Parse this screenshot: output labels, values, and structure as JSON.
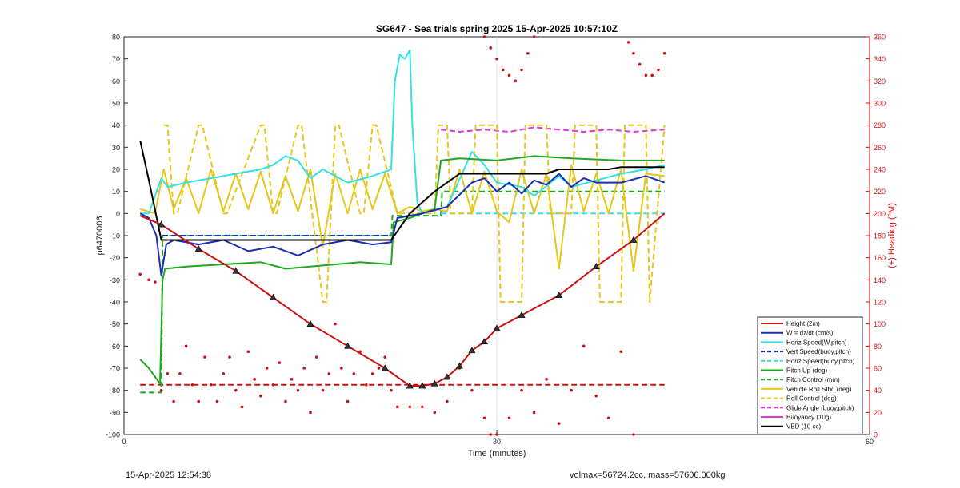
{
  "chart_data": {
    "type": "line",
    "title": "SG647 - Sea trials spring 2025 15-Apr-2025 10:57:10Z",
    "xlabel": "Time (minutes)",
    "ylabel_left": "p6470006",
    "ylabel_right": "(+) Heading (°M)",
    "xlim": [
      0,
      60
    ],
    "ylim_left": [
      -100,
      80
    ],
    "ylim_right": [
      0,
      360
    ],
    "xticks": [
      0,
      30,
      60
    ],
    "yticks_left": [
      -100,
      -90,
      -80,
      -70,
      -60,
      -50,
      -40,
      -30,
      -20,
      -10,
      0,
      10,
      20,
      30,
      40,
      50,
      60,
      70,
      80
    ],
    "yticks_right": [
      0,
      20,
      40,
      60,
      80,
      100,
      120,
      140,
      160,
      180,
      200,
      220,
      240,
      260,
      280,
      300,
      320,
      340,
      360
    ],
    "grid": "sparse-vertical",
    "legend_position": "bottom-right",
    "colors": {
      "height": "#cc1111",
      "w": "#1a2fb5",
      "horiz_speed": "#33e0e8",
      "vert_speed_buoy": "#1a2fb5",
      "horiz_speed_buoy": "#33e0e8",
      "pitch_up": "#1fa81f",
      "pitch_control": "#1fa81f",
      "roll": "#e6c619",
      "roll_control": "#e6c619",
      "glide_angle": "#e333e3",
      "buoyancy": "#e333e3",
      "vbd": "#000000",
      "heading": "#cc1111",
      "axis_right": "#cc1111"
    },
    "legend": [
      {
        "label": "Height (2m)",
        "color": "#cc1111",
        "style": "solid"
      },
      {
        "label": "W = dz/dt (cm/s)",
        "color": "#1a2fb5",
        "style": "solid"
      },
      {
        "label": "Horiz Speed(W,pitch)",
        "color": "#33e0e8",
        "style": "solid"
      },
      {
        "label": "Vert Speed(buoy,pitch)",
        "color": "#1a2fb5",
        "style": "dashed"
      },
      {
        "label": "Horiz Speed(buoy,pitch)",
        "color": "#33e0e8",
        "style": "dashed"
      },
      {
        "label": "Pitch Up (deg)",
        "color": "#1fa81f",
        "style": "solid"
      },
      {
        "label": "Pitch Control (mm)",
        "color": "#1fa81f",
        "style": "dashed"
      },
      {
        "label": "Vehicle Roll Stbd (deg)",
        "color": "#e6c619",
        "style": "solid"
      },
      {
        "label": "Roll Control (deg)",
        "color": "#e6c619",
        "style": "dashed"
      },
      {
        "label": "Glide Angle (buoy,pitch)",
        "color": "#e333e3",
        "style": "dashed"
      },
      {
        "label": "Buoyancy (10g)",
        "color": "#e333e3",
        "style": "solid"
      },
      {
        "label": "VBD (10 cc)",
        "color": "#000000",
        "style": "solid"
      }
    ],
    "series": [
      {
        "name": "Height (2m)",
        "key": "height",
        "style": "solid",
        "x": [
          1.3,
          3,
          6,
          9,
          12,
          15,
          18,
          21,
          23,
          24,
          25,
          26,
          27,
          28,
          29,
          30,
          32,
          35,
          38,
          41,
          43.5
        ],
        "y": [
          -1,
          -5,
          -16,
          -26,
          -38,
          -50,
          -60,
          -70,
          -78,
          -78,
          -77,
          -74,
          -69,
          -62,
          -58,
          -52,
          -46,
          -37,
          -24,
          -12,
          0
        ]
      },
      {
        "name": "W = dz/dt (cm/s)",
        "key": "w",
        "style": "solid",
        "x": [
          1.3,
          2,
          2.6,
          3,
          3.4,
          4,
          6,
          8,
          10,
          12,
          14,
          16,
          18,
          20,
          21.5,
          22,
          24,
          26,
          28,
          29,
          30,
          31,
          32,
          33,
          34,
          35,
          36,
          37,
          38,
          40,
          42,
          43.5
        ],
        "y": [
          0,
          -2,
          -10,
          -28,
          -14,
          -12,
          -14,
          -12,
          -17,
          -15,
          -19,
          -14,
          -12,
          -14,
          -13,
          -2,
          0,
          3,
          14,
          16,
          10,
          14,
          9,
          15,
          13,
          18,
          12,
          16,
          14,
          14,
          17,
          14
        ]
      },
      {
        "name": "Horiz Speed(W,pitch)",
        "key": "horiz_speed",
        "style": "solid",
        "x": [
          1.3,
          2,
          3,
          3.5,
          5,
          7,
          9,
          11,
          12,
          13,
          14,
          15,
          16,
          18,
          20,
          21.5,
          21.8,
          22.2,
          22.6,
          23,
          23.2,
          23.6,
          24,
          26,
          28,
          29,
          30,
          32,
          33,
          35,
          36,
          38,
          40,
          42,
          43.5
        ],
        "y": [
          0,
          0,
          16,
          12,
          14,
          16,
          18,
          20,
          22,
          26,
          24,
          16,
          20,
          14,
          17,
          20,
          60,
          72,
          70,
          74,
          40,
          5,
          0,
          3,
          28,
          22,
          14,
          12,
          8,
          17,
          12,
          15,
          18,
          20,
          22
        ]
      },
      {
        "name": "Vert Speed(buoy,pitch)",
        "key": "vert_speed_buoy",
        "style": "dashed",
        "x": [
          3.1,
          21.5
        ],
        "y": [
          -10,
          -10
        ]
      },
      {
        "name": "Horiz Speed(buoy,pitch)",
        "key": "horiz_speed_buoy",
        "style": "dashed",
        "x": [
          25.5,
          43.5
        ],
        "y": [
          0,
          0
        ]
      },
      {
        "name": "Pitch Up (deg)",
        "key": "pitch_up",
        "style": "solid",
        "x": [
          1.3,
          2,
          2.9,
          3.1,
          3.3,
          5,
          8,
          11,
          13,
          15,
          17,
          19,
          21.5,
          21.7,
          23,
          25,
          25.5,
          27,
          30,
          33,
          36,
          40,
          43.5
        ],
        "y": [
          -66,
          -70,
          -77,
          -30,
          -25,
          -24,
          -23,
          -22,
          -25,
          -24,
          -23,
          -22,
          -23,
          -4,
          -2,
          2,
          24,
          25,
          24,
          26,
          25,
          24,
          24
        ]
      },
      {
        "name": "Pitch Control (mm)",
        "key": "pitch_control",
        "style": "dashed",
        "x": [
          1.3,
          3,
          3.1,
          21.5,
          21.6,
          25.5,
          25.6,
          43.5
        ],
        "y": [
          -81,
          -81,
          -10,
          -10,
          -1,
          -1,
          10,
          10
        ]
      },
      {
        "name": "Vehicle Roll Stbd (deg)",
        "key": "roll",
        "style": "solid",
        "x": [
          1.3,
          2.5,
          3.2,
          4,
          5,
          6,
          7,
          8,
          9,
          10,
          11,
          12,
          13,
          14,
          15,
          16,
          17,
          18,
          19,
          20,
          21,
          22,
          23,
          24,
          25,
          26,
          27,
          28,
          29,
          30,
          31,
          32,
          33,
          34,
          35,
          36,
          37,
          38,
          39,
          40,
          41,
          42,
          43.5
        ],
        "y": [
          2,
          0,
          20,
          2,
          16,
          0,
          20,
          1,
          18,
          2,
          19,
          0,
          17,
          1,
          20,
          -15,
          18,
          0,
          20,
          2,
          18,
          0,
          3,
          1,
          2,
          1,
          20,
          0,
          19,
          1,
          -4,
          20,
          0,
          18,
          -25,
          22,
          1,
          18,
          0,
          20,
          -26,
          18,
          17
        ]
      },
      {
        "name": "Roll Control (deg)",
        "key": "roll_control",
        "style": "dashed",
        "x": [
          3.2,
          3.5,
          4,
          4.3,
          6,
          6.3,
          8,
          8.3,
          11,
          11.3,
          12,
          12.3,
          14,
          14.3,
          16,
          16.3,
          17,
          17.3,
          19,
          19.3,
          20,
          20.3,
          22,
          25,
          25.3,
          26,
          26.3,
          28,
          28.3,
          30,
          30.3,
          32,
          32.3,
          34,
          34.3,
          36,
          36.3,
          38,
          38.3,
          40,
          40.3,
          42,
          42.3,
          43.5
        ],
        "y": [
          40,
          40,
          0,
          0,
          40,
          40,
          0,
          0,
          40,
          40,
          0,
          0,
          40,
          40,
          -40,
          -40,
          40,
          40,
          0,
          0,
          40,
          40,
          0,
          0,
          40,
          40,
          0,
          0,
          40,
          40,
          -40,
          -40,
          40,
          40,
          0,
          0,
          40,
          40,
          -40,
          -40,
          40,
          40,
          -40,
          40
        ]
      },
      {
        "name": "Glide Angle (buoy,pitch)",
        "key": "glide_angle",
        "style": "dashed",
        "x": [
          25.5,
          27,
          29,
          31,
          32,
          33,
          35,
          37,
          39,
          41,
          43.5
        ],
        "y": [
          38,
          37,
          38,
          37,
          38,
          39,
          38,
          37,
          38,
          37,
          38
        ]
      },
      {
        "name": "Buoyancy (10g)",
        "key": "buoyancy",
        "style": "solid",
        "x": [],
        "y": []
      },
      {
        "name": "VBD (10 cc)",
        "key": "vbd",
        "style": "solid",
        "x": [
          1.3,
          2,
          3,
          21.5,
          23,
          25,
          26,
          27,
          30,
          34,
          35,
          39,
          40,
          43.5
        ],
        "y": [
          33,
          15,
          -12,
          -12,
          0,
          10,
          14,
          18,
          18,
          18,
          20,
          20,
          21,
          21
        ]
      },
      {
        "name": "Heading",
        "key": "heading",
        "style": "dotted",
        "axis": "right",
        "x": [
          1.3,
          2,
          2.5,
          3,
          3.5,
          4,
          4.5,
          5,
          5.5,
          6,
          6.5,
          7,
          7.5,
          8,
          8.5,
          9,
          9.5,
          10,
          10.5,
          11,
          11.5,
          12,
          12.5,
          13,
          13.5,
          14,
          14.5,
          15,
          15.5,
          16,
          16.5,
          17,
          17.5,
          18,
          18.5,
          19,
          19.5,
          20,
          20.5,
          21,
          21.5,
          22,
          23,
          24,
          25,
          26,
          27,
          28,
          29,
          29.5,
          30,
          31,
          32,
          33,
          34,
          35,
          36,
          37,
          38,
          39,
          40,
          41
        ],
        "y": [
          145,
          140,
          138,
          40,
          55,
          30,
          55,
          80,
          45,
          30,
          70,
          45,
          30,
          55,
          70,
          40,
          25,
          75,
          50,
          35,
          60,
          45,
          65,
          30,
          50,
          40,
          60,
          20,
          70,
          40,
          55,
          100,
          60,
          30,
          55,
          75,
          45,
          55,
          60,
          70,
          40,
          25,
          25,
          25,
          20,
          30,
          60,
          40,
          15,
          0,
          0,
          15,
          40,
          20,
          50,
          10,
          40,
          80,
          35,
          15,
          75,
          0
        ]
      },
      {
        "name": "Heading (late)",
        "key": "heading_late",
        "style": "dotted",
        "axis": "right",
        "x": [
          29,
          29.5,
          30,
          30.5,
          31,
          31.5,
          32,
          32.5,
          33,
          40.6,
          41,
          41.5,
          42,
          42.5,
          43,
          43.5
        ],
        "y": [
          360,
          350,
          340,
          330,
          325,
          320,
          330,
          345,
          360,
          355,
          345,
          335,
          325,
          325,
          330,
          345
        ]
      },
      {
        "name": "Heading reference",
        "key": "heading_ref",
        "style": "dashed",
        "axis": "right",
        "x": [
          1.3,
          43.5
        ],
        "y": [
          45,
          45
        ]
      }
    ]
  },
  "footer": {
    "timestamp": "15-Apr-2025 12:54:38",
    "info": "volmax=56724.2cc, mass=57606.000kg"
  }
}
